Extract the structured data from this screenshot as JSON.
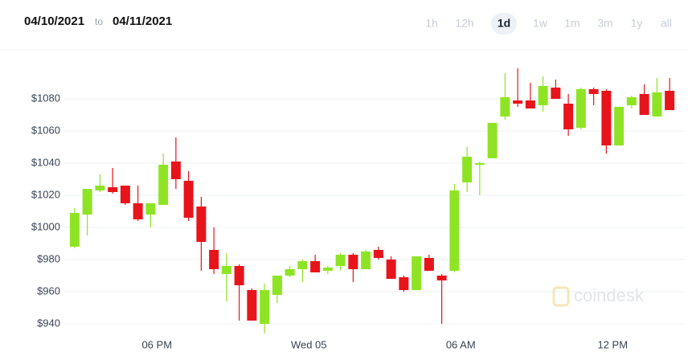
{
  "header": {
    "from": "04/10/2021",
    "separator": "to",
    "to": "04/11/2021",
    "ranges": [
      "1h",
      "12h",
      "1d",
      "1w",
      "1m",
      "3m",
      "1y",
      "all"
    ],
    "selected_range": "1d"
  },
  "watermark": "coindesk",
  "chart_data": {
    "type": "candlestick",
    "x": [
      -9.25,
      -8.75,
      -8.25,
      -7.75,
      -7.25,
      -6.75,
      -6.25,
      -5.75,
      -5.25,
      -4.75,
      -4.25,
      -3.75,
      -3.25,
      -2.75,
      -2.25,
      -1.75,
      -1.25,
      -0.75,
      -0.25,
      0.25,
      0.75,
      1.25,
      1.75,
      2.25,
      2.75,
      3.25,
      3.75,
      4.25,
      4.75,
      5.25,
      5.75,
      6.25,
      6.75,
      7.25,
      7.75,
      8.25,
      8.75,
      9.25,
      9.75,
      10.25,
      10.75,
      11.25,
      11.75,
      12.25,
      12.75,
      13.25,
      13.75,
      14.25
    ],
    "open": [
      988,
      1008,
      1023,
      1025,
      1026,
      1015,
      1008,
      1014,
      1041,
      1029,
      1013,
      986,
      971,
      976,
      961,
      940,
      958,
      970,
      974,
      979,
      973,
      976,
      983,
      974,
      986,
      980,
      969,
      961,
      981,
      970,
      973,
      1028,
      1039,
      1043,
      1069,
      1079,
      1079,
      1076,
      1087,
      1077,
      1062,
      1086,
      1085,
      1051,
      1076,
      1083,
      1069,
      1085
    ],
    "high": [
      1012,
      1024,
      1033,
      1037,
      1026,
      1026,
      1015,
      1046,
      1056,
      1035,
      1019,
      1000,
      984,
      977,
      962,
      965,
      970,
      976,
      980,
      983,
      976,
      984,
      984,
      986,
      988,
      982,
      970,
      982,
      983,
      971,
      1027,
      1050,
      1041,
      1065,
      1096,
      1099,
      1090,
      1094,
      1092,
      1083,
      1087,
      1087,
      1086,
      1075,
      1082,
      1089,
      1093,
      1093
    ],
    "low": [
      987,
      995,
      1022,
      1021,
      1014,
      1004,
      1000,
      1014,
      1024,
      1004,
      973,
      971,
      954,
      942,
      942,
      934,
      953,
      969,
      966,
      972,
      971,
      973,
      966,
      974,
      980,
      968,
      960,
      961,
      973,
      940,
      972,
      1022,
      1020,
      1043,
      1067,
      1075,
      1074,
      1072,
      1080,
      1057,
      1061,
      1076,
      1046,
      1051,
      1074,
      1070,
      1069,
      1073
    ],
    "close": [
      1009,
      1024,
      1026,
      1022,
      1015,
      1005,
      1015,
      1039,
      1030,
      1006,
      991,
      974,
      976,
      964,
      942,
      961,
      970,
      974,
      979,
      972,
      975,
      983,
      974,
      985,
      981,
      968,
      961,
      982,
      973,
      967,
      1023,
      1044,
      1040,
      1065,
      1081,
      1077,
      1074,
      1088,
      1080,
      1061,
      1086,
      1083,
      1051,
      1075,
      1081,
      1070,
      1084,
      1073
    ],
    "up_color": "#8ee424",
    "down_color": "#e8141b",
    "xlim": [
      -9.5,
      14.5
    ],
    "xticks": [
      {
        "value": -6,
        "label": "06 PM"
      },
      {
        "value": 0,
        "label": "Wed 05"
      },
      {
        "value": 6,
        "label": "06 AM"
      },
      {
        "value": 12,
        "label": "12 PM"
      }
    ],
    "ylim": [
      931,
      1099
    ],
    "yticks": [
      {
        "value": 940,
        "label": "$940"
      },
      {
        "value": 960,
        "label": "$960"
      },
      {
        "value": 980,
        "label": "$980"
      },
      {
        "value": 1000,
        "label": "$1000"
      },
      {
        "value": 1020,
        "label": "$1020"
      },
      {
        "value": 1040,
        "label": "$1040"
      },
      {
        "value": 1060,
        "label": "$1060"
      },
      {
        "value": 1080,
        "label": "$1080"
      }
    ],
    "grid": true
  }
}
